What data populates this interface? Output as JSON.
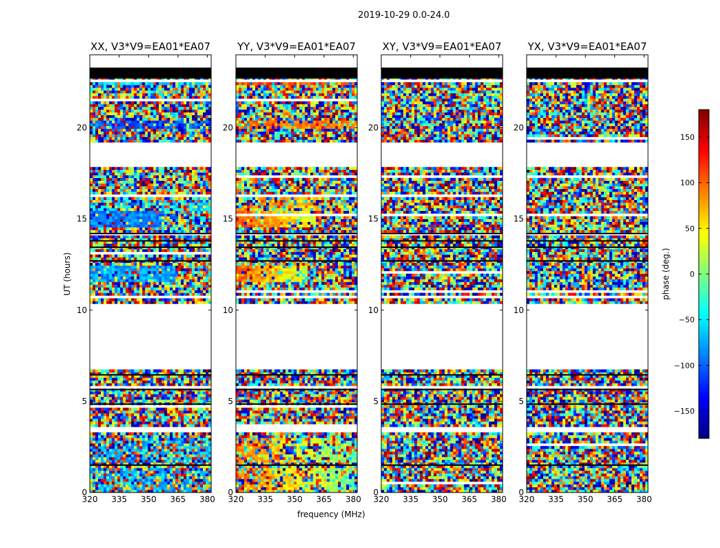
{
  "chart_data": {
    "type": "heatmap",
    "title": "2019-10-29 0.0-24.0",
    "xlabel": "frequency (MHz)",
    "ylabel": "UT (hours)",
    "xlim": [
      320,
      382
    ],
    "ylim": [
      0,
      24
    ],
    "xticks": [
      320,
      335,
      350,
      365,
      380
    ],
    "yticks": [
      0,
      5,
      10,
      15,
      20
    ],
    "panels": [
      {
        "title": "XX, V3*V9=EA01*EA07",
        "mode": "xx"
      },
      {
        "title": "YY, V3*V9=EA01*EA07",
        "mode": "yy"
      },
      {
        "title": "XY, V3*V9=EA01*EA07",
        "mode": "xy"
      },
      {
        "title": "YX, V3*V9=EA01*EA07",
        "mode": "yx"
      }
    ],
    "colorbar": {
      "label": "phase (deg.)",
      "range": [
        -180,
        180
      ],
      "ticks": [
        -150,
        -100,
        -50,
        0,
        50,
        100,
        150
      ],
      "colormap": "jet"
    },
    "flagged_ut_ranges": [
      [
        6.9,
        10.3
      ],
      [
        10.7,
        10.85
      ],
      [
        17.8,
        19.2
      ],
      [
        23.0,
        24.0
      ]
    ],
    "blank_ut_ranges": [
      [
        3.3,
        3.6
      ],
      [
        1.45,
        1.55
      ]
    ]
  }
}
